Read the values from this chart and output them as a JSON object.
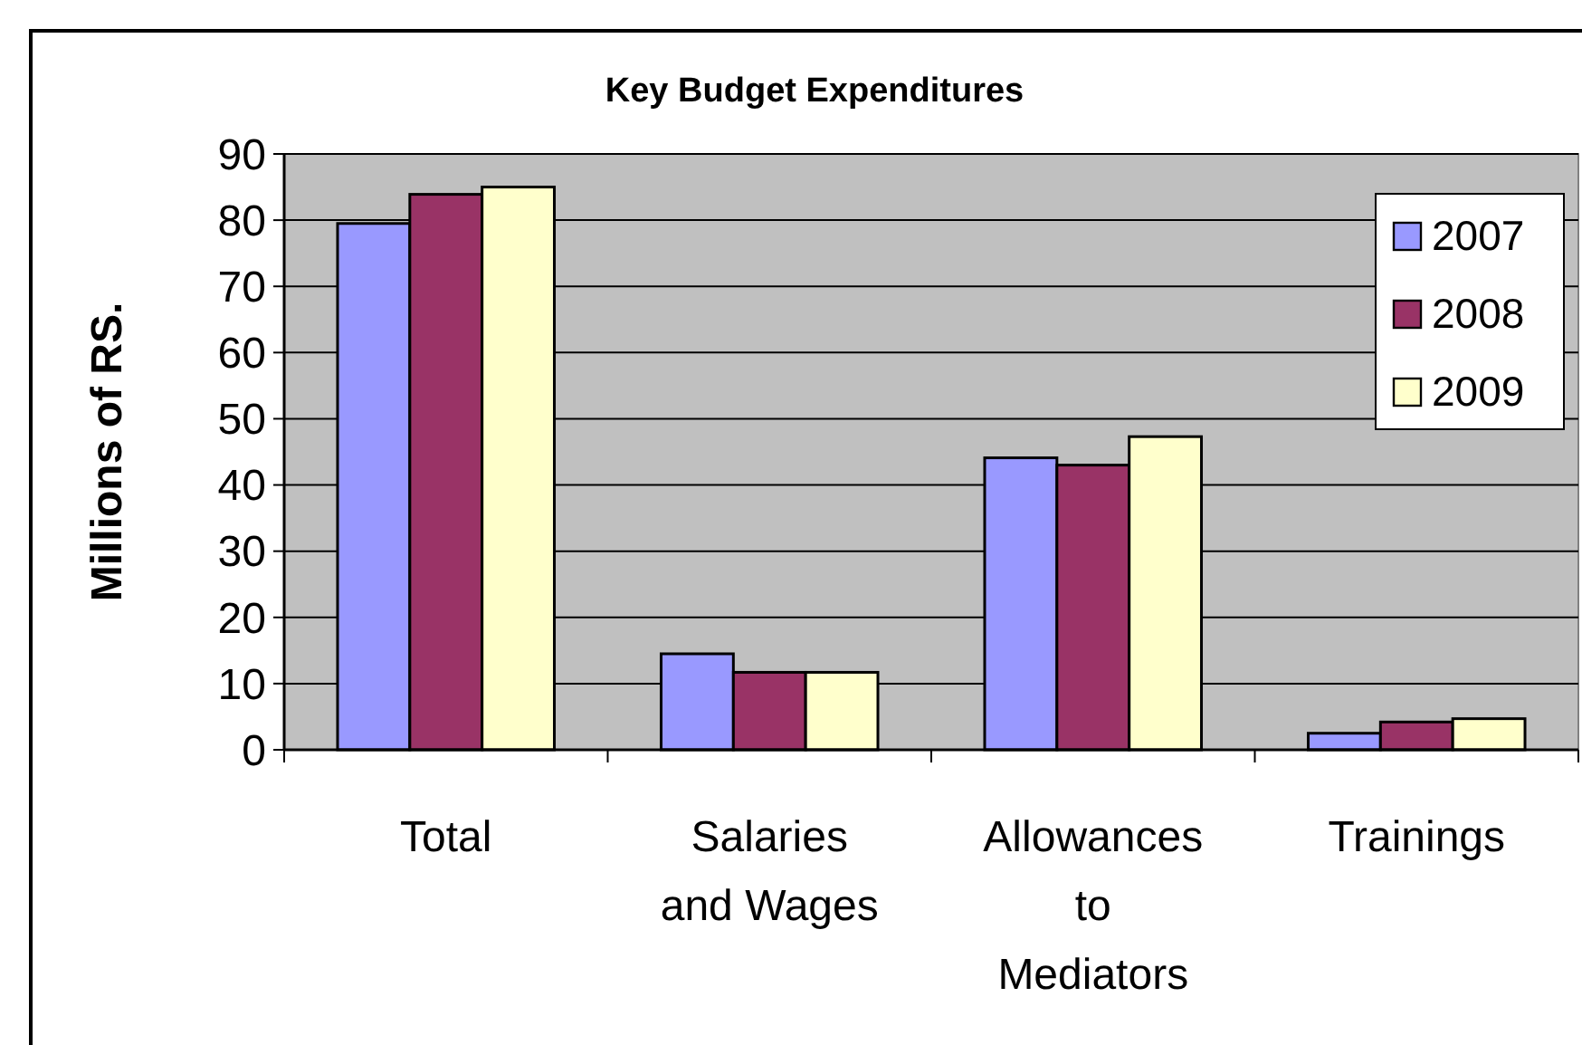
{
  "chart_data": {
    "type": "bar",
    "title": "Key Budget Expenditures",
    "ylabel": "Millions of RS.",
    "categories": [
      "Total",
      "Salaries and Wages",
      "Allowances to Mediators",
      "Trainings"
    ],
    "series": [
      {
        "name": "2007",
        "color": "#9999ff",
        "values": [
          79.5,
          14.5,
          44.1,
          2.5
        ]
      },
      {
        "name": "2008",
        "color": "#993366",
        "values": [
          83.9,
          11.7,
          43.0,
          4.2
        ]
      },
      {
        "name": "2009",
        "color": "#ffffcc",
        "values": [
          85.0,
          11.7,
          47.3,
          4.7
        ]
      }
    ],
    "ylim": [
      0,
      90
    ],
    "yticks": [
      0,
      10,
      20,
      30,
      40,
      50,
      60,
      70,
      80,
      90
    ],
    "grid": "y",
    "legend": "top right"
  }
}
